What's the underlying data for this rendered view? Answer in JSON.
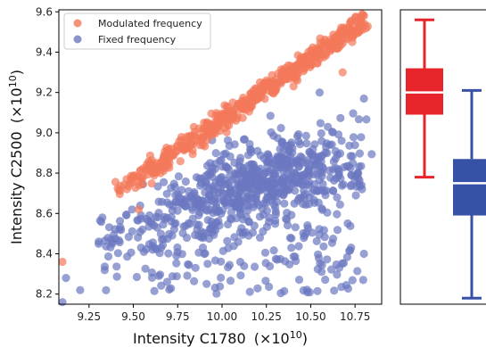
{
  "chart_data": [
    {
      "type": "scatter",
      "xlabel": "Intensity C1780",
      "xlabel_exp": "(×10",
      "xlabel_sup": "10",
      "xlabel_close": ")",
      "ylabel": "Intensity C2500",
      "ylabel_exp": "(×10",
      "ylabel_sup": "10",
      "ylabel_close": ")",
      "xlim": [
        9.08,
        10.9
      ],
      "ylim": [
        8.15,
        9.61
      ],
      "xticks": [
        "9.25",
        "9.50",
        "9.75",
        "10.00",
        "10.25",
        "10.50",
        "10.75"
      ],
      "yticks": [
        "8.2",
        "8.4",
        "8.6",
        "8.8",
        "9.0",
        "9.2",
        "9.4",
        "9.6"
      ],
      "grid": false,
      "legend_position": "top-left",
      "series": [
        {
          "name": "Modulated frequency",
          "color": "#f4775a",
          "trend": {
            "x_start": 9.4,
            "y_start": 8.7,
            "x_end": 10.8,
            "y_end": 9.55,
            "spread": 0.025
          },
          "outliers": [
            [
              9.1,
              8.36
            ],
            [
              9.53,
              8.62
            ],
            [
              10.68,
              9.3
            ]
          ]
        },
        {
          "name": "Fixed frequency",
          "color": "#6b78c0",
          "x_range": [
            9.1,
            10.85
          ],
          "y_range": [
            8.15,
            9.25
          ],
          "center": [
            10.2,
            8.75
          ]
        }
      ]
    },
    {
      "type": "box",
      "ylim": [
        8.15,
        9.61
      ],
      "boxes": [
        {
          "name": "Modulated frequency",
          "color": "#e8242b",
          "whisker_low": 8.78,
          "q1": 9.09,
          "median": 9.2,
          "q3": 9.32,
          "whisker_high": 9.56
        },
        {
          "name": "Fixed frequency",
          "color": "#3651a6",
          "whisker_low": 8.18,
          "q1": 8.59,
          "median": 8.75,
          "q3": 8.87,
          "whisker_high": 9.21
        }
      ]
    }
  ]
}
